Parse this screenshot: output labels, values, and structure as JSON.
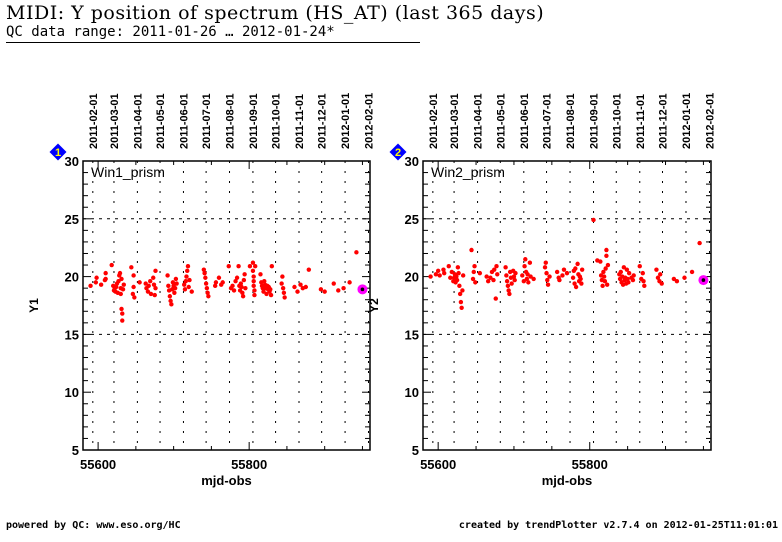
{
  "header": {
    "title": "MIDI: Y position of spectrum (HS_AT) (last 365 days)",
    "subtitle": "QC data range: 2011-01-26 … 2012-01-24*"
  },
  "footer": {
    "left": "powered by QC: www.eso.org/HC",
    "right": "created by trendPlotter v2.7.4 on 2012-01-25T11:01:01"
  },
  "colors": {
    "point": "#ff0000",
    "latest_ring": "#ff00ff",
    "marker": "#0000ff",
    "marker_text": "#ffff00"
  },
  "chart_data": [
    {
      "type": "scatter",
      "panel_number": "1",
      "label": "Win1_prism",
      "xlabel": "mjd-obs",
      "ylabel": "Y1",
      "xlim": [
        55580,
        55960
      ],
      "ylim": [
        5,
        30
      ],
      "xticks": [
        "55600",
        "55800"
      ],
      "xtick_values": [
        55600,
        55800
      ],
      "yticks": [
        "5",
        "10",
        "15",
        "20",
        "25",
        "30"
      ],
      "ytick_values": [
        5,
        10,
        15,
        20,
        25,
        30
      ],
      "date_ticks": [
        "2011-02-01",
        "2011-03-01",
        "2011-04-01",
        "2011-05-01",
        "2011-06-01",
        "2011-07-01",
        "2011-08-01",
        "2011-09-01",
        "2011-10-01",
        "2011-11-01",
        "2011-12-01",
        "2012-01-01",
        "2012-02-01"
      ],
      "date_tick_mjd": [
        55593,
        55621,
        55652,
        55682,
        55713,
        55743,
        55774,
        55805,
        55835,
        55866,
        55896,
        55927,
        55958
      ],
      "latest": {
        "x": 55950,
        "y": 18.9
      },
      "points": [
        [
          55590,
          19.2
        ],
        [
          55597,
          19.5
        ],
        [
          55598,
          19.9
        ],
        [
          55604,
          19.3
        ],
        [
          55609,
          19.7
        ],
        [
          55610,
          20.3
        ],
        [
          55610,
          19.8
        ],
        [
          55618,
          21.0
        ],
        [
          55620,
          19.2
        ],
        [
          55621,
          18.8
        ],
        [
          55622,
          19.0
        ],
        [
          55623,
          18.7
        ],
        [
          55624,
          19.1
        ],
        [
          55625,
          19.4
        ],
        [
          55626,
          18.6
        ],
        [
          55627,
          19.6
        ],
        [
          55628,
          20.1
        ],
        [
          55629,
          20.3
        ],
        [
          55630,
          19.0
        ],
        [
          55630,
          18.5
        ],
        [
          55631,
          19.8
        ],
        [
          55631,
          17.2
        ],
        [
          55632,
          16.8
        ],
        [
          55632,
          16.2
        ],
        [
          55633,
          18.9
        ],
        [
          55634,
          19.3
        ],
        [
          55644,
          20.8
        ],
        [
          55646,
          18.5
        ],
        [
          55647,
          19.1
        ],
        [
          55647,
          20.1
        ],
        [
          55648,
          18.2
        ],
        [
          55655,
          19.5
        ],
        [
          55663,
          19.4
        ],
        [
          55664,
          19.0
        ],
        [
          55666,
          18.7
        ],
        [
          55667,
          19.2
        ],
        [
          55669,
          19.6
        ],
        [
          55670,
          18.5
        ],
        [
          55673,
          19.9
        ],
        [
          55674,
          19.3
        ],
        [
          55675,
          18.4
        ],
        [
          55676,
          20.5
        ],
        [
          55676,
          19.0
        ],
        [
          55692,
          20.1
        ],
        [
          55693,
          19.2
        ],
        [
          55694,
          18.8
        ],
        [
          55695,
          18.3
        ],
        [
          55696,
          17.9
        ],
        [
          55697,
          17.6
        ],
        [
          55698,
          18.9
        ],
        [
          55699,
          19.5
        ],
        [
          55700,
          19.2
        ],
        [
          55701,
          18.6
        ],
        [
          55702,
          19.0
        ],
        [
          55703,
          19.8
        ],
        [
          55704,
          19.4
        ],
        [
          55714,
          19.3
        ],
        [
          55715,
          18.9
        ],
        [
          55716,
          19.6
        ],
        [
          55717,
          20.0
        ],
        [
          55718,
          20.5
        ],
        [
          55719,
          20.9
        ],
        [
          55720,
          19.1
        ],
        [
          55721,
          19.7
        ],
        [
          55724,
          18.7
        ],
        [
          55740,
          20.6
        ],
        [
          55741,
          20.3
        ],
        [
          55742,
          19.9
        ],
        [
          55743,
          19.4
        ],
        [
          55744,
          19.0
        ],
        [
          55745,
          18.6
        ],
        [
          55746,
          18.3
        ],
        [
          55755,
          19.2
        ],
        [
          55756,
          19.5
        ],
        [
          55760,
          19.9
        ],
        [
          55763,
          19.3
        ],
        [
          55765,
          19.5
        ],
        [
          55773,
          20.9
        ],
        [
          55776,
          19.0
        ],
        [
          55778,
          19.2
        ],
        [
          55780,
          18.8
        ],
        [
          55782,
          19.6
        ],
        [
          55784,
          19.9
        ],
        [
          55786,
          20.9
        ],
        [
          55787,
          19.2
        ],
        [
          55788,
          18.8
        ],
        [
          55789,
          19.4
        ],
        [
          55790,
          19.1
        ],
        [
          55791,
          18.6
        ],
        [
          55792,
          18.3
        ],
        [
          55793,
          19.7
        ],
        [
          55794,
          20.2
        ],
        [
          55795,
          19.0
        ],
        [
          55801,
          20.9
        ],
        [
          55805,
          21.2
        ],
        [
          55805,
          20.5
        ],
        [
          55806,
          20.0
        ],
        [
          55806,
          19.6
        ],
        [
          55806,
          19.2
        ],
        [
          55807,
          18.8
        ],
        [
          55807,
          18.4
        ],
        [
          55808,
          20.9
        ],
        [
          55815,
          20.2
        ],
        [
          55816,
          19.5
        ],
        [
          55817,
          19.2
        ],
        [
          55818,
          19.0
        ],
        [
          55819,
          18.7
        ],
        [
          55820,
          19.6
        ],
        [
          55821,
          19.3
        ],
        [
          55822,
          19.0
        ],
        [
          55823,
          18.5
        ],
        [
          55824,
          19.2
        ],
        [
          55825,
          18.9
        ],
        [
          55826,
          19.1
        ],
        [
          55827,
          18.7
        ],
        [
          55828,
          18.9
        ],
        [
          55829,
          18.4
        ],
        [
          55830,
          20.9
        ],
        [
          55843,
          19.4
        ],
        [
          55844,
          20.0
        ],
        [
          55845,
          19.0
        ],
        [
          55846,
          18.6
        ],
        [
          55847,
          18.2
        ],
        [
          55860,
          19.1
        ],
        [
          55864,
          18.7
        ],
        [
          55868,
          19.3
        ],
        [
          55871,
          19.0
        ],
        [
          55875,
          19.1
        ],
        [
          55879,
          20.6
        ],
        [
          55895,
          18.9
        ],
        [
          55900,
          18.7
        ],
        [
          55912,
          19.4
        ],
        [
          55918,
          18.8
        ],
        [
          55925,
          19.0
        ],
        [
          55933,
          19.5
        ],
        [
          55942,
          22.1
        ]
      ]
    },
    {
      "type": "scatter",
      "panel_number": "2",
      "label": "Win2_prism",
      "xlabel": "mjd-obs",
      "ylabel": "Y2",
      "xlim": [
        55580,
        55960
      ],
      "ylim": [
        5,
        30
      ],
      "xticks": [
        "55600",
        "55800"
      ],
      "xtick_values": [
        55600,
        55800
      ],
      "yticks": [
        "5",
        "10",
        "15",
        "20",
        "25",
        "30"
      ],
      "ytick_values": [
        5,
        10,
        15,
        20,
        25,
        30
      ],
      "date_ticks": [
        "2011-02-01",
        "2011-03-01",
        "2011-04-01",
        "2011-05-01",
        "2011-06-01",
        "2011-07-01",
        "2011-08-01",
        "2011-09-01",
        "2011-10-01",
        "2011-11-01",
        "2011-12-01",
        "2012-01-01",
        "2012-02-01"
      ],
      "date_tick_mjd": [
        55593,
        55621,
        55652,
        55682,
        55713,
        55743,
        55774,
        55805,
        55835,
        55866,
        55896,
        55927,
        55958
      ],
      "latest": {
        "x": 55950,
        "y": 19.7
      },
      "points": [
        [
          55590,
          20.0
        ],
        [
          55597,
          20.2
        ],
        [
          55600,
          20.5
        ],
        [
          55602,
          20.1
        ],
        [
          55607,
          20.6
        ],
        [
          55608,
          20.3
        ],
        [
          55614,
          20.9
        ],
        [
          55616,
          19.9
        ],
        [
          55618,
          20.4
        ],
        [
          55620,
          19.6
        ],
        [
          55621,
          19.9
        ],
        [
          55622,
          20.2
        ],
        [
          55623,
          19.5
        ],
        [
          55624,
          20.0
        ],
        [
          55625,
          19.7
        ],
        [
          55626,
          20.8
        ],
        [
          55627,
          20.3
        ],
        [
          55628,
          19.2
        ],
        [
          55629,
          18.5
        ],
        [
          55630,
          17.8
        ],
        [
          55631,
          17.3
        ],
        [
          55632,
          18.8
        ],
        [
          55633,
          20.1
        ],
        [
          55644,
          22.3
        ],
        [
          55646,
          19.8
        ],
        [
          55647,
          20.4
        ],
        [
          55648,
          20.9
        ],
        [
          55649,
          19.5
        ],
        [
          55655,
          20.3
        ],
        [
          55664,
          20.0
        ],
        [
          55666,
          19.6
        ],
        [
          55669,
          19.9
        ],
        [
          55671,
          20.4
        ],
        [
          55673,
          19.7
        ],
        [
          55674,
          20.6
        ],
        [
          55676,
          18.1
        ],
        [
          55677,
          20.9
        ],
        [
          55678,
          20.2
        ],
        [
          55689,
          20.8
        ],
        [
          55690,
          20.1
        ],
        [
          55691,
          19.6
        ],
        [
          55692,
          19.2
        ],
        [
          55693,
          18.8
        ],
        [
          55694,
          18.5
        ],
        [
          55695,
          20.4
        ],
        [
          55696,
          19.9
        ],
        [
          55697,
          19.4
        ],
        [
          55699,
          20.5
        ],
        [
          55700,
          20.0
        ],
        [
          55701,
          19.7
        ],
        [
          55702,
          20.3
        ],
        [
          55711,
          20.1
        ],
        [
          55713,
          19.6
        ],
        [
          55714,
          20.9
        ],
        [
          55715,
          21.5
        ],
        [
          55716,
          20.4
        ],
        [
          55717,
          19.8
        ],
        [
          55718,
          20.2
        ],
        [
          55719,
          19.5
        ],
        [
          55721,
          21.2
        ],
        [
          55722,
          20.0
        ],
        [
          55726,
          19.8
        ],
        [
          55741,
          20.8
        ],
        [
          55742,
          21.2
        ],
        [
          55743,
          20.3
        ],
        [
          55744,
          19.7
        ],
        [
          55745,
          19.3
        ],
        [
          55747,
          20.0
        ],
        [
          55757,
          20.4
        ],
        [
          55759,
          19.9
        ],
        [
          55760,
          19.7
        ],
        [
          55764,
          20.1
        ],
        [
          55766,
          20.6
        ],
        [
          55770,
          20.3
        ],
        [
          55778,
          19.9
        ],
        [
          55779,
          20.5
        ],
        [
          55780,
          19.4
        ],
        [
          55781,
          20.7
        ],
        [
          55782,
          19.1
        ],
        [
          55784,
          21.1
        ],
        [
          55785,
          20.2
        ],
        [
          55786,
          19.6
        ],
        [
          55787,
          20.0
        ],
        [
          55788,
          19.8
        ],
        [
          55789,
          19.4
        ],
        [
          55790,
          20.6
        ],
        [
          55805,
          24.9
        ],
        [
          55810,
          21.4
        ],
        [
          55814,
          21.3
        ],
        [
          55815,
          20.1
        ],
        [
          55816,
          19.7
        ],
        [
          55817,
          19.2
        ],
        [
          55818,
          20.4
        ],
        [
          55819,
          20.0
        ],
        [
          55820,
          19.6
        ],
        [
          55821,
          20.7
        ],
        [
          55822,
          22.3
        ],
        [
          55822,
          21.8
        ],
        [
          55823,
          19.3
        ],
        [
          55824,
          21.0
        ],
        [
          55839,
          20.2
        ],
        [
          55840,
          19.8
        ],
        [
          55841,
          20.4
        ],
        [
          55842,
          19.5
        ],
        [
          55843,
          20.0
        ],
        [
          55844,
          19.3
        ],
        [
          55845,
          20.8
        ],
        [
          55846,
          19.7
        ],
        [
          55847,
          19.9
        ],
        [
          55848,
          19.4
        ],
        [
          55849,
          20.6
        ],
        [
          55850,
          19.8
        ],
        [
          55851,
          19.5
        ],
        [
          55852,
          20.3
        ],
        [
          55855,
          19.9
        ],
        [
          55857,
          19.7
        ],
        [
          55858,
          20.1
        ],
        [
          55866,
          20.9
        ],
        [
          55868,
          19.8
        ],
        [
          55870,
          20.3
        ],
        [
          55871,
          19.6
        ],
        [
          55872,
          19.2
        ],
        [
          55888,
          20.6
        ],
        [
          55890,
          19.9
        ],
        [
          55892,
          19.6
        ],
        [
          55893,
          20.2
        ],
        [
          55895,
          19.4
        ],
        [
          55911,
          19.8
        ],
        [
          55915,
          19.6
        ],
        [
          55925,
          19.9
        ],
        [
          55935,
          20.4
        ],
        [
          55945,
          22.9
        ]
      ]
    }
  ]
}
